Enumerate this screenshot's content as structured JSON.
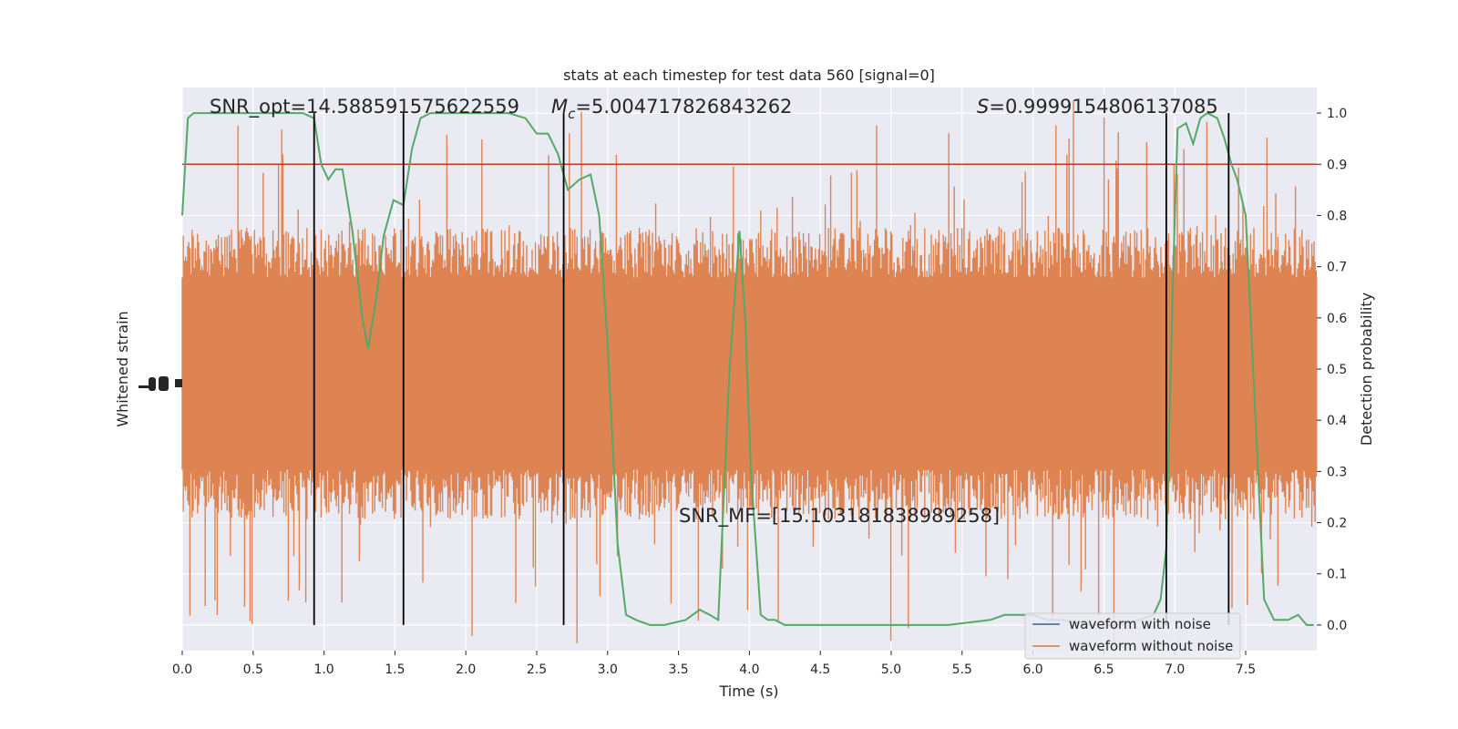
{
  "chart_data": {
    "type": "line",
    "title": "stats at each timestep for test data 560 [signal=0]",
    "xlabel": "Time (s)",
    "ylabel_left": "Whitened strain",
    "ylabel_right": "Detection probability",
    "xlim": [
      0.0,
      8.0
    ],
    "ylim_right": [
      -0.05,
      1.05
    ],
    "x_ticks": [
      "0.0",
      "0.5",
      "1.0",
      "1.5",
      "2.0",
      "2.5",
      "3.0",
      "3.5",
      "4.0",
      "4.5",
      "5.0",
      "5.5",
      "6.0",
      "6.5",
      "7.0",
      "7.5"
    ],
    "y_right_ticks": [
      "0.0",
      "0.1",
      "0.2",
      "0.3",
      "0.4",
      "0.5",
      "0.6",
      "0.7",
      "0.8",
      "0.9",
      "1.0"
    ],
    "threshold": 0.9,
    "threshold_color": "#c0392b",
    "detection_color": "#55a868",
    "noise_color": "#dd8452",
    "clean_color": "#4c72b0",
    "annotations": {
      "snr_opt": "SNR_opt=14.588591575622559",
      "mc_symbol": "M",
      "mc_sub": "c",
      "mc_value": "=5.004717826843262",
      "s_symbol": "S",
      "s_value": "=0.9999154806137085",
      "snr_mf": "SNR_MF=[15.103181838989258]"
    },
    "vertical_lines_x": [
      0.93,
      1.56,
      2.69,
      6.94,
      7.38
    ],
    "detection_probability": {
      "x": [
        0.0,
        0.04,
        0.08,
        0.12,
        0.2,
        0.3,
        0.5,
        0.7,
        0.85,
        0.93,
        0.98,
        1.03,
        1.08,
        1.13,
        1.2,
        1.27,
        1.31,
        1.37,
        1.42,
        1.49,
        1.56,
        1.62,
        1.68,
        1.75,
        1.9,
        2.1,
        2.3,
        2.42,
        2.5,
        2.58,
        2.65,
        2.72,
        2.8,
        2.88,
        2.94,
        3.0,
        3.07,
        3.13,
        3.2,
        3.3,
        3.4,
        3.55,
        3.65,
        3.72,
        3.78,
        3.86,
        3.93,
        3.97,
        4.01,
        4.08,
        4.13,
        4.18,
        4.25,
        4.35,
        4.5,
        4.8,
        5.1,
        5.4,
        5.7,
        5.8,
        5.9,
        6.0,
        6.1,
        6.2,
        6.4,
        6.6,
        6.75,
        6.85,
        6.9,
        6.94,
        6.99,
        7.02,
        7.08,
        7.13,
        7.18,
        7.23,
        7.3,
        7.35,
        7.4,
        7.44,
        7.5,
        7.57,
        7.63,
        7.7,
        7.8,
        7.87,
        7.93,
        7.98
      ],
      "y": [
        0.8,
        0.99,
        1.0,
        1.0,
        1.0,
        1.0,
        1.0,
        1.0,
        1.0,
        0.99,
        0.9,
        0.87,
        0.89,
        0.89,
        0.77,
        0.6,
        0.54,
        0.64,
        0.76,
        0.83,
        0.82,
        0.93,
        0.99,
        1.0,
        1.0,
        1.0,
        1.0,
        0.99,
        0.96,
        0.96,
        0.92,
        0.85,
        0.87,
        0.88,
        0.8,
        0.55,
        0.16,
        0.02,
        0.01,
        0.0,
        0.0,
        0.01,
        0.03,
        0.02,
        0.01,
        0.5,
        0.77,
        0.6,
        0.3,
        0.02,
        0.01,
        0.01,
        0.0,
        0.0,
        0.0,
        0.0,
        0.0,
        0.0,
        0.01,
        0.02,
        0.02,
        0.02,
        0.01,
        0.01,
        0.0,
        0.0,
        0.01,
        0.02,
        0.05,
        0.15,
        0.7,
        0.97,
        0.98,
        0.94,
        0.99,
        1.0,
        0.99,
        0.95,
        0.9,
        0.87,
        0.8,
        0.4,
        0.05,
        0.01,
        0.01,
        0.02,
        0.0,
        0.0
      ]
    },
    "legend": {
      "position": "lower right",
      "entries": [
        "waveform with noise",
        "waveform without noise"
      ]
    }
  }
}
